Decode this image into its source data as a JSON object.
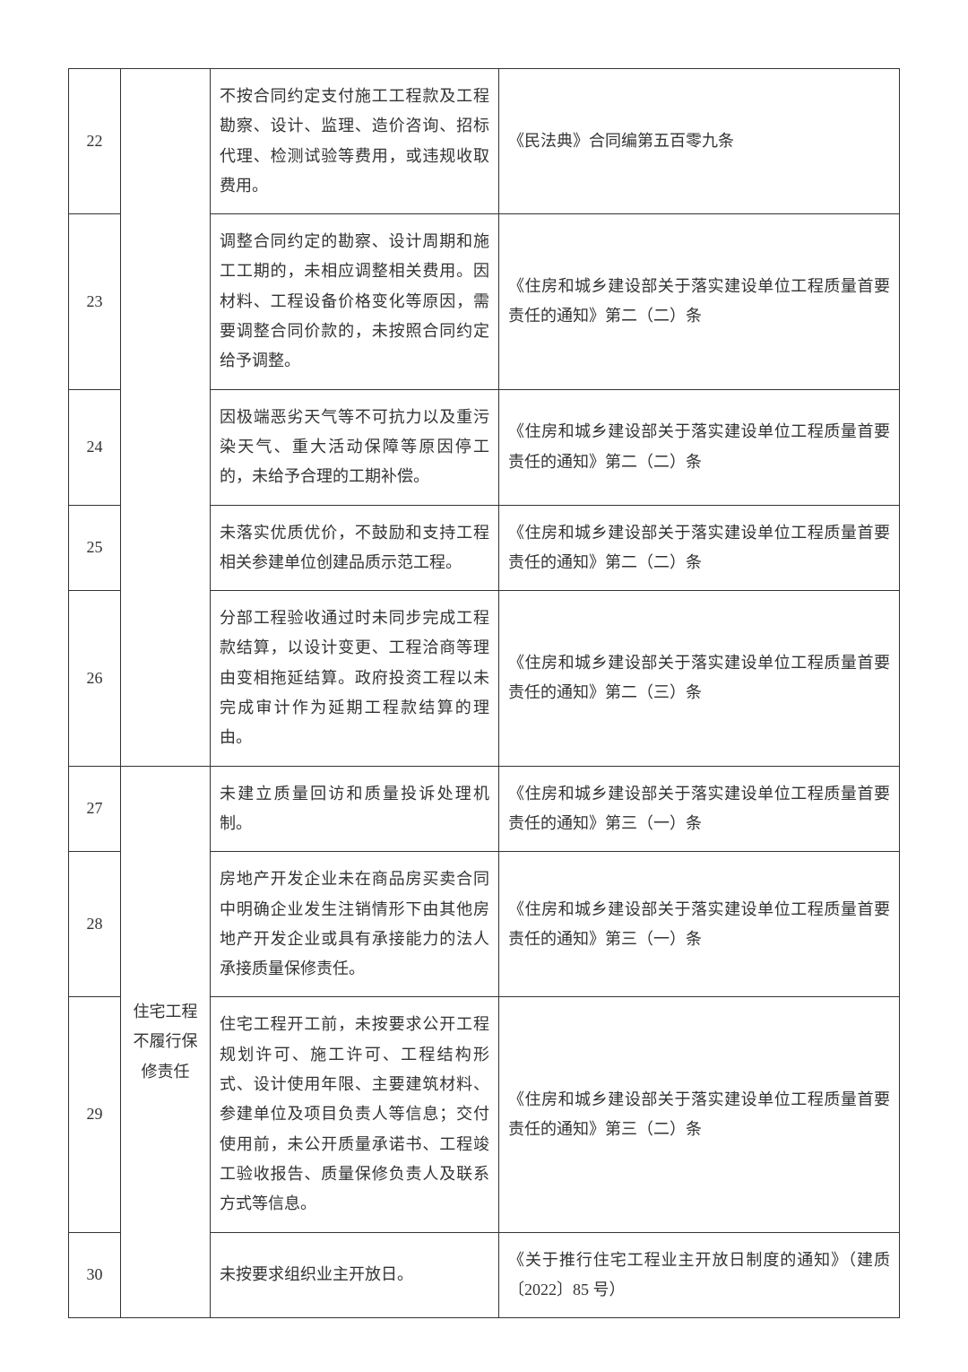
{
  "categories": {
    "cat1": "",
    "cat2": "住宅工程不履行保修责任"
  },
  "rows": [
    {
      "num": "22",
      "desc": "不按合同约定支付施工工程款及工程勘察、设计、监理、造价咨询、招标代理、检测试验等费用，或违规收取费用。",
      "ref": "《民法典》合同编第五百零九条"
    },
    {
      "num": "23",
      "desc": "调整合同约定的勘察、设计周期和施工工期的，未相应调整相关费用。因材料、工程设备价格变化等原因，需要调整合同价款的，未按照合同约定给予调整。",
      "ref": "《住房和城乡建设部关于落实建设单位工程质量首要责任的通知》第二（二）条"
    },
    {
      "num": "24",
      "desc": "因极端恶劣天气等不可抗力以及重污染天气、重大活动保障等原因停工的，未给予合理的工期补偿。",
      "ref": "《住房和城乡建设部关于落实建设单位工程质量首要责任的通知》第二（二）条"
    },
    {
      "num": "25",
      "desc": "未落实优质优价，不鼓励和支持工程相关参建单位创建品质示范工程。",
      "ref": "《住房和城乡建设部关于落实建设单位工程质量首要责任的通知》第二（二）条"
    },
    {
      "num": "26",
      "desc": "分部工程验收通过时未同步完成工程款结算，以设计变更、工程洽商等理由变相拖延结算。政府投资工程以未完成审计作为延期工程款结算的理由。",
      "ref": "《住房和城乡建设部关于落实建设单位工程质量首要责任的通知》第二（三）条"
    },
    {
      "num": "27",
      "desc": "未建立质量回访和质量投诉处理机制。",
      "ref": "《住房和城乡建设部关于落实建设单位工程质量首要责任的通知》第三（一）条"
    },
    {
      "num": "28",
      "desc": "房地产开发企业未在商品房买卖合同中明确企业发生注销情形下由其他房地产开发企业或具有承接能力的法人承接质量保修责任。",
      "ref": "《住房和城乡建设部关于落实建设单位工程质量首要责任的通知》第三（一）条"
    },
    {
      "num": "29",
      "desc": "住宅工程开工前，未按要求公开工程规划许可、施工许可、工程结构形式、设计使用年限、主要建筑材料、参建单位及项目负责人等信息；交付使用前，未公开质量承诺书、工程竣工验收报告、质量保修负责人及联系方式等信息。",
      "ref": "《住房和城乡建设部关于落实建设单位工程质量首要责任的通知》第三（二）条"
    },
    {
      "num": "30",
      "desc": "未按要求组织业主开放日。",
      "ref": "《关于推行住宅工程业主开放日制度的通知》（建质〔2022〕85 号）"
    }
  ]
}
